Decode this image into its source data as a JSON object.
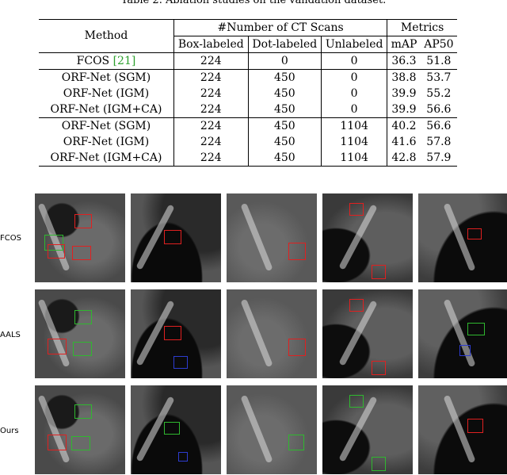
{
  "caption": "Table 2. Ablation studies on the validation dataset.",
  "table": {
    "header": {
      "method": "Method",
      "scans_group": "#Number of CT Scans",
      "metrics_group": "Metrics",
      "cols": [
        "Box-labeled",
        "Dot-labeled",
        "Unlabeled",
        "mAP",
        "AP50"
      ]
    },
    "rows": [
      {
        "method": "FCOS ",
        "cite": "[21]",
        "box": "224",
        "dot": "0",
        "unl": "0",
        "map": "36.3",
        "ap50": "51.8"
      },
      {
        "method": "ORF-Net (SGM)",
        "box": "224",
        "dot": "450",
        "unl": "0",
        "map": "38.8",
        "ap50": "53.7"
      },
      {
        "method": "ORF-Net (IGM)",
        "box": "224",
        "dot": "450",
        "unl": "0",
        "map": "39.9",
        "ap50": "55.2"
      },
      {
        "method": "ORF-Net (IGM+CA)",
        "box": "224",
        "dot": "450",
        "unl": "0",
        "map": "39.9",
        "ap50": "56.6"
      },
      {
        "method": "ORF-Net (SGM)",
        "box": "224",
        "dot": "450",
        "unl": "1104",
        "map": "40.2",
        "ap50": "56.6"
      },
      {
        "method": "ORF-Net (IGM)",
        "box": "224",
        "dot": "450",
        "unl": "1104",
        "map": "41.6",
        "ap50": "57.8"
      },
      {
        "method": "ORF-Net (IGM+CA)",
        "box": "224",
        "dot": "450",
        "unl": "1104",
        "map": "42.8",
        "ap50": "57.9"
      }
    ]
  },
  "figure": {
    "row_labels": [
      "FCOS",
      "AALS",
      "Ours"
    ],
    "box_colors": {
      "ground_truth": "#2fb82f",
      "prediction": "#e02020",
      "missed": "#2d3cd0"
    }
  }
}
